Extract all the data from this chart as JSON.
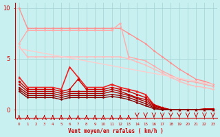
{
  "title": "",
  "xlabel": "Vent moyen/en rafales ( km/h )",
  "bg_color": "#c8f0f0",
  "grid_color": "#a8d8d8",
  "xlim": [
    -0.5,
    23.5
  ],
  "ylim": [
    -0.8,
    10.5
  ],
  "series": [
    {
      "x": [
        0,
        1,
        2,
        3,
        4,
        5,
        6,
        7,
        8,
        9,
        10,
        11,
        12,
        13,
        14,
        15,
        16,
        17,
        18,
        19,
        20,
        21,
        22,
        23
      ],
      "y": [
        10.0,
        8.0,
        8.0,
        8.0,
        8.0,
        8.0,
        8.0,
        8.0,
        8.0,
        8.0,
        8.0,
        8.0,
        8.0,
        7.5,
        7.0,
        6.5,
        5.8,
        5.2,
        4.6,
        4.0,
        3.5,
        3.0,
        2.8,
        2.5
      ],
      "color": "#ff9090",
      "lw": 1.0,
      "marker": "o",
      "ms": 2.0
    },
    {
      "x": [
        0,
        1,
        2,
        3,
        4,
        5,
        6,
        7,
        8,
        9,
        10,
        11,
        12,
        13,
        14,
        15,
        16,
        17,
        18,
        19,
        20,
        21,
        22,
        23
      ],
      "y": [
        6.5,
        7.8,
        7.8,
        7.8,
        7.8,
        7.8,
        7.8,
        7.8,
        7.8,
        7.8,
        7.8,
        7.8,
        8.5,
        5.2,
        5.0,
        4.8,
        4.3,
        3.8,
        3.4,
        3.0,
        2.8,
        2.7,
        2.5,
        2.3
      ],
      "color": "#ffaaaa",
      "lw": 1.0,
      "marker": "o",
      "ms": 2.0
    },
    {
      "x": [
        0,
        1,
        2,
        3,
        4,
        5,
        6,
        7,
        8,
        9,
        10,
        11,
        12,
        13,
        14,
        15,
        16,
        17,
        18,
        19,
        20,
        21,
        22,
        23
      ],
      "y": [
        6.2,
        5.2,
        5.2,
        5.2,
        5.2,
        5.2,
        5.2,
        5.2,
        5.2,
        5.2,
        5.2,
        5.2,
        5.2,
        5.0,
        4.7,
        4.4,
        4.0,
        3.6,
        3.2,
        2.8,
        2.5,
        2.3,
        2.2,
        2.0
      ],
      "color": "#ffbbbb",
      "lw": 1.0,
      "marker": "o",
      "ms": 2.0
    },
    {
      "x": [
        0,
        23
      ],
      "y": [
        6.0,
        2.5
      ],
      "color": "#ffcccc",
      "lw": 1.0,
      "marker": null,
      "ms": 0
    },
    {
      "x": [
        0,
        1,
        2,
        3,
        4,
        5,
        6,
        7,
        8,
        9,
        10,
        11,
        12,
        13,
        14,
        15,
        16,
        17,
        18,
        19,
        20,
        21,
        22,
        23
      ],
      "y": [
        3.2,
        2.2,
        2.2,
        2.2,
        2.2,
        2.0,
        4.2,
        3.2,
        2.2,
        2.2,
        2.2,
        2.5,
        2.2,
        2.0,
        1.8,
        1.5,
        0.5,
        0.2,
        0.0,
        0.0,
        0.0,
        0.0,
        0.0,
        0.0
      ],
      "color": "#ee2222",
      "lw": 1.2,
      "marker": "^",
      "ms": 3.0
    },
    {
      "x": [
        0,
        1,
        2,
        3,
        4,
        5,
        6,
        7,
        8,
        9,
        10,
        11,
        12,
        13,
        14,
        15,
        16,
        17,
        18,
        19,
        20,
        21,
        22,
        23
      ],
      "y": [
        2.8,
        2.0,
        2.0,
        2.0,
        2.0,
        1.8,
        2.0,
        3.0,
        2.0,
        2.0,
        2.0,
        2.2,
        2.0,
        1.8,
        1.5,
        1.2,
        0.5,
        0.2,
        0.0,
        0.0,
        0.0,
        0.0,
        0.1,
        0.1
      ],
      "color": "#cc0000",
      "lw": 1.0,
      "marker": "o",
      "ms": 2.5
    },
    {
      "x": [
        0,
        1,
        2,
        3,
        4,
        5,
        6,
        7,
        8,
        9,
        10,
        11,
        12,
        13,
        14,
        15,
        16,
        17,
        18,
        19,
        20,
        21,
        22,
        23
      ],
      "y": [
        2.5,
        1.8,
        1.8,
        1.8,
        1.8,
        1.6,
        1.8,
        1.8,
        1.8,
        1.8,
        1.8,
        2.0,
        1.8,
        1.5,
        1.2,
        1.0,
        0.4,
        0.15,
        0.0,
        0.0,
        0.0,
        0.0,
        0.0,
        0.0
      ],
      "color": "#bb0000",
      "lw": 1.0,
      "marker": "o",
      "ms": 2.0
    },
    {
      "x": [
        0,
        1,
        2,
        3,
        4,
        5,
        6,
        7,
        8,
        9,
        10,
        11,
        12,
        13,
        14,
        15,
        16,
        17,
        18,
        19,
        20,
        21,
        22,
        23
      ],
      "y": [
        2.2,
        1.6,
        1.6,
        1.6,
        1.6,
        1.4,
        1.6,
        1.6,
        1.6,
        1.6,
        1.6,
        1.8,
        1.6,
        1.4,
        1.1,
        0.8,
        0.3,
        0.1,
        0.0,
        0.0,
        0.0,
        0.0,
        0.0,
        0.0
      ],
      "color": "#aa0000",
      "lw": 1.0,
      "marker": "o",
      "ms": 2.0
    },
    {
      "x": [
        0,
        1,
        2,
        3,
        4,
        5,
        6,
        7,
        8,
        9,
        10,
        11,
        12,
        13,
        14,
        15,
        16,
        17,
        18,
        19,
        20,
        21,
        22,
        23
      ],
      "y": [
        2.0,
        1.4,
        1.4,
        1.4,
        1.4,
        1.2,
        1.4,
        1.4,
        1.4,
        1.4,
        1.4,
        1.5,
        1.4,
        1.2,
        0.9,
        0.6,
        0.2,
        0.0,
        0.0,
        0.0,
        0.0,
        0.0,
        0.0,
        0.0
      ],
      "color": "#990000",
      "lw": 1.0,
      "marker": "o",
      "ms": 2.0
    },
    {
      "x": [
        0,
        1,
        2,
        3,
        4,
        5,
        6,
        7,
        8,
        9,
        10,
        11,
        12,
        13,
        14,
        15,
        16,
        17,
        18,
        19,
        20,
        21,
        22,
        23
      ],
      "y": [
        1.8,
        1.2,
        1.2,
        1.2,
        1.2,
        1.0,
        1.2,
        1.2,
        1.2,
        1.2,
        1.2,
        1.3,
        1.2,
        1.0,
        0.7,
        0.4,
        0.1,
        0.0,
        0.0,
        0.0,
        0.0,
        0.0,
        0.0,
        0.0
      ],
      "color": "#880000",
      "lw": 1.0,
      "marker": "o",
      "ms": 2.0
    }
  ],
  "yticks": [
    0,
    5,
    10
  ],
  "xticks": [
    0,
    1,
    2,
    3,
    4,
    5,
    6,
    7,
    8,
    9,
    10,
    11,
    12,
    13,
    14,
    15,
    16,
    17,
    18,
    19,
    20,
    21,
    22,
    23
  ],
  "arrow_up_x": [
    0,
    1,
    2,
    3,
    4,
    5,
    6,
    7,
    8,
    9,
    10,
    11,
    12,
    13
  ],
  "arrow_down_x": [
    14,
    15,
    16,
    17,
    18,
    19,
    20,
    21,
    22,
    23
  ],
  "tick_color": "#cc0000",
  "xlabel_color": "#cc0000"
}
